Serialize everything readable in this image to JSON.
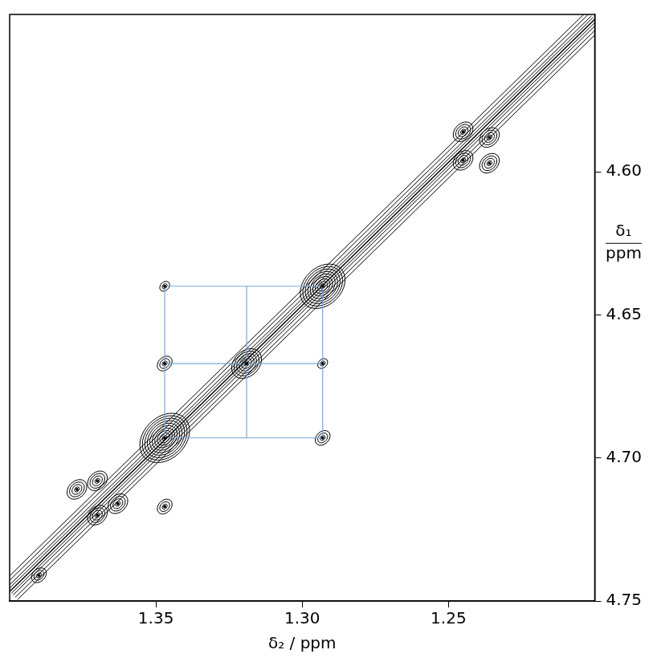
{
  "chart_data": {
    "type": "contour",
    "x_label": "δ₂ / ppm",
    "y_label": [
      "δ₁",
      "ppm"
    ],
    "xlim": [
      1.4,
      1.2
    ],
    "ylim": [
      4.75,
      4.545
    ],
    "xticks": [
      1.35,
      {
        "value": 1.3,
        "label": "1.30"
      },
      1.25
    ],
    "yticks": [
      {
        "value": 4.6,
        "label": "4.60"
      },
      4.65,
      {
        "value": 4.7,
        "label": "4.70"
      },
      4.75
    ],
    "grid": false,
    "color": "#000000",
    "diagonal": {
      "x": [
        1.4,
        1.2
      ],
      "y": [
        4.7467,
        4.5467
      ]
    },
    "peaks": {
      "x": [
        1.245,
        1.236,
        1.245,
        1.236,
        1.293,
        1.319,
        1.347,
        1.377,
        1.37,
        1.363,
        1.37,
        1.39,
        1.347,
        1.347,
        1.293,
        1.293,
        1.347
      ],
      "y": [
        4.586,
        4.588,
        4.596,
        4.597,
        4.64,
        4.667,
        4.693,
        4.711,
        4.708,
        4.716,
        4.72,
        4.741,
        4.64,
        4.667,
        4.693,
        4.667,
        4.717
      ],
      "levels": [
        4,
        4,
        4,
        4,
        9,
        6,
        10,
        4,
        4,
        4,
        4,
        3,
        2,
        3,
        3,
        2,
        3
      ]
    },
    "boxes": {
      "x": [
        1.293,
        1.319,
        1.347
      ],
      "y": [
        4.64,
        4.667,
        4.693
      ],
      "color": "#7aa6d6"
    }
  }
}
